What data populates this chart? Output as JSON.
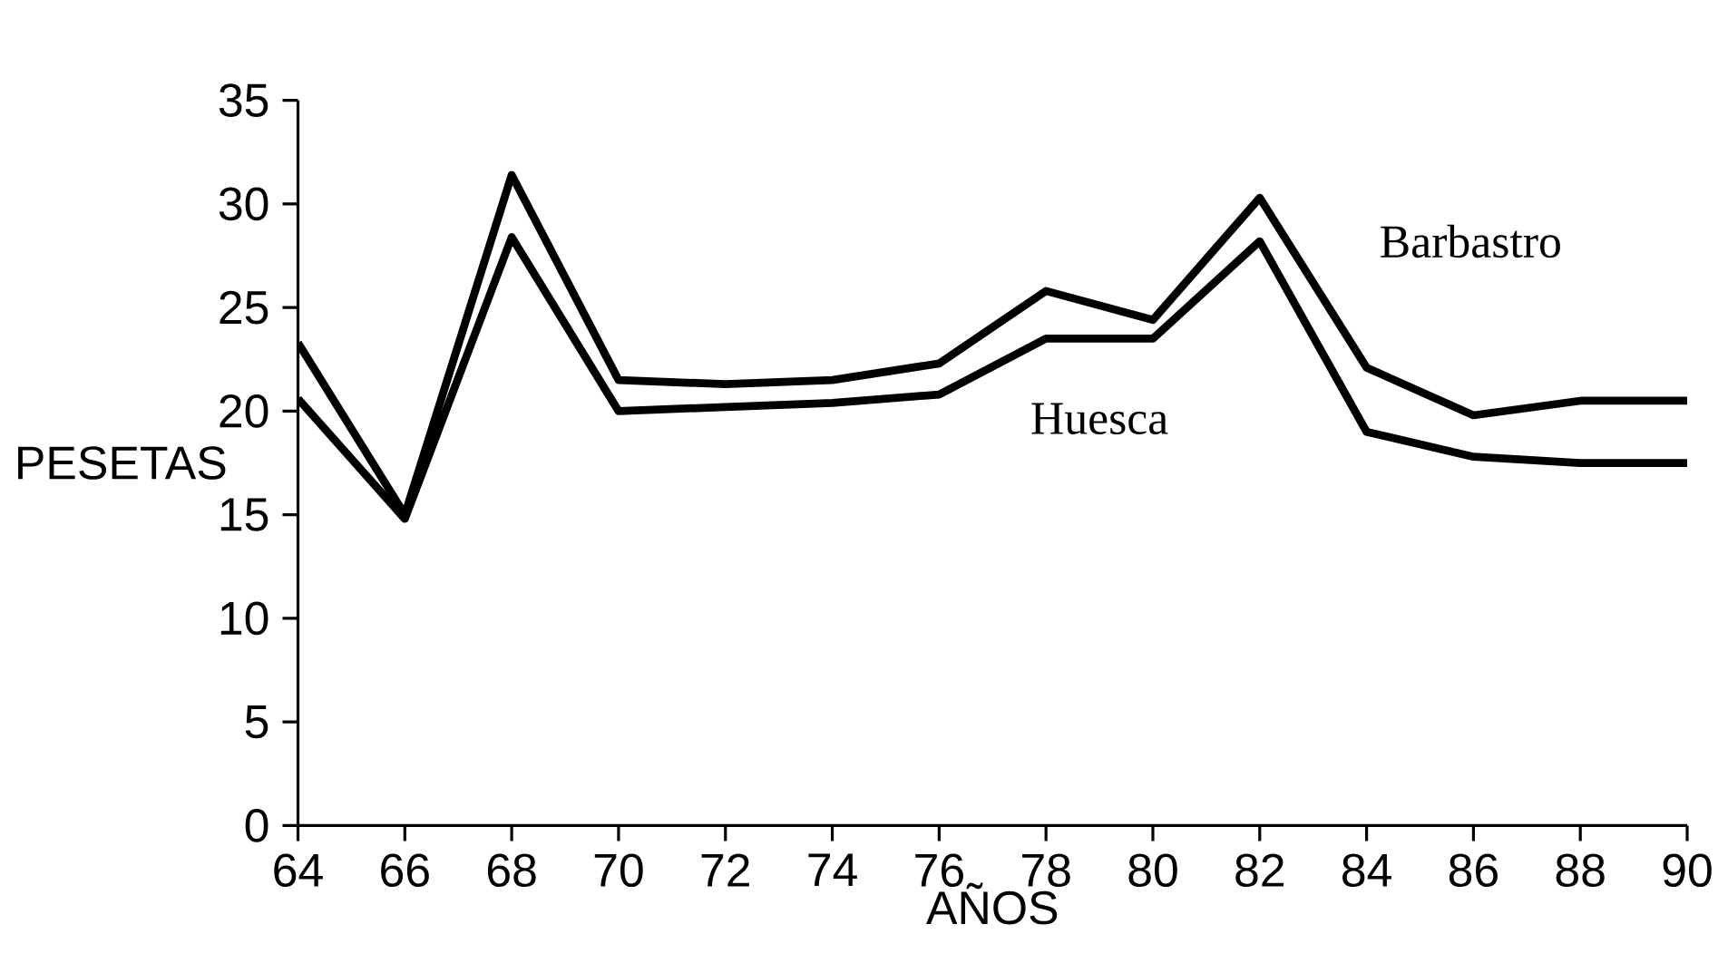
{
  "chart_data": {
    "type": "line",
    "xlabel": "AÑOS",
    "ylabel": "PESETAS",
    "x": [
      64,
      66,
      68,
      70,
      72,
      74,
      76,
      78,
      80,
      82,
      84,
      86,
      88,
      90
    ],
    "series": [
      {
        "name": "Barbastro",
        "color": "#000000",
        "values": [
          23.3,
          15.0,
          31.4,
          21.5,
          21.3,
          21.5,
          22.3,
          25.8,
          24.4,
          30.3,
          22.1,
          19.8,
          20.5,
          20.5
        ]
      },
      {
        "name": "Huesca",
        "color": "#000000",
        "values": [
          20.6,
          14.8,
          28.4,
          20.0,
          20.2,
          20.4,
          20.8,
          23.5,
          23.5,
          28.2,
          19.0,
          17.8,
          17.5,
          17.5
        ]
      }
    ],
    "xlim": [
      64,
      90
    ],
    "xticks": [
      64,
      66,
      68,
      70,
      72,
      74,
      76,
      78,
      80,
      82,
      84,
      86,
      88,
      90
    ],
    "ylim": [
      0,
      35
    ],
    "yticks": [
      0,
      5,
      10,
      15,
      20,
      25,
      30,
      35
    ],
    "grid": false,
    "legend": false,
    "marker": "none",
    "line_style": "solid"
  }
}
